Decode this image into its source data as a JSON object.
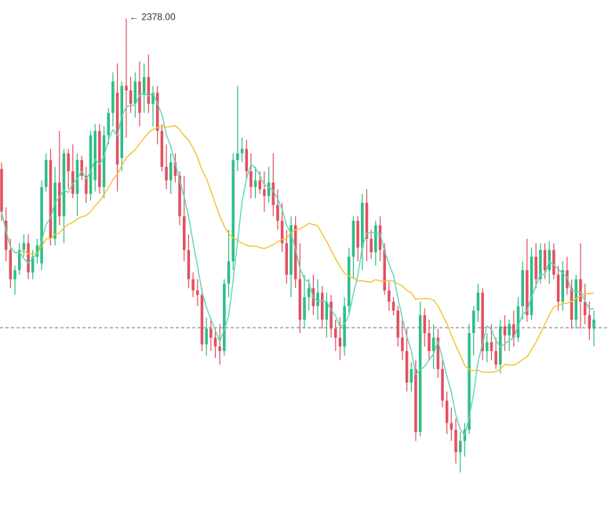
{
  "chart_data": {
    "type": "candlestick",
    "annotations": {
      "high_label": "← 2378.00"
    },
    "colors": {
      "up": "#2ebd85",
      "down": "#e2505f",
      "ma_fast": "#5fd6b8",
      "ma_slow": "#f2c230",
      "ref_line": "#777777"
    },
    "reference_line": 2240.4,
    "candles": [
      [
        2311,
        2314,
        2288,
        2292
      ],
      [
        2288,
        2294,
        2270,
        2275
      ],
      [
        2275,
        2280,
        2258,
        2262
      ],
      [
        2262,
        2268,
        2255,
        2266
      ],
      [
        2266,
        2278,
        2264,
        2275
      ],
      [
        2275,
        2282,
        2272,
        2278
      ],
      [
        2278,
        2282,
        2262,
        2265
      ],
      [
        2265,
        2275,
        2262,
        2272
      ],
      [
        2272,
        2280,
        2269,
        2277
      ],
      [
        2269,
        2306,
        2266,
        2303
      ],
      [
        2303,
        2318,
        2301,
        2315
      ],
      [
        2315,
        2320,
        2277,
        2280
      ],
      [
        2280,
        2312,
        2277,
        2305
      ],
      [
        2305,
        2328,
        2286,
        2290
      ],
      [
        2290,
        2320,
        2278,
        2318
      ],
      [
        2318,
        2320,
        2302,
        2310
      ],
      [
        2310,
        2322,
        2298,
        2300
      ],
      [
        2300,
        2318,
        2290,
        2315
      ],
      [
        2315,
        2317,
        2306,
        2308
      ],
      [
        2308,
        2312,
        2296,
        2300
      ],
      [
        2300,
        2328,
        2297,
        2326
      ],
      [
        2306,
        2331,
        2301,
        2328
      ],
      [
        2328,
        2331,
        2300,
        2303
      ],
      [
        2303,
        2330,
        2298,
        2326
      ],
      [
        2326,
        2338,
        2322,
        2336
      ],
      [
        2336,
        2354,
        2330,
        2350
      ],
      [
        2345,
        2358,
        2301,
        2313
      ],
      [
        2316,
        2350,
        2310,
        2348
      ],
      [
        2348,
        2378,
        2325,
        2346
      ],
      [
        2346,
        2352,
        2336,
        2340
      ],
      [
        2340,
        2354,
        2334,
        2350
      ],
      [
        2350,
        2359,
        2330,
        2336
      ],
      [
        2344,
        2358,
        2336,
        2352
      ],
      [
        2352,
        2362,
        2336,
        2340
      ],
      [
        2340,
        2348,
        2330,
        2345
      ],
      [
        2345,
        2348,
        2322,
        2328
      ],
      [
        2328,
        2331,
        2310,
        2312
      ],
      [
        2312,
        2322,
        2302,
        2306
      ],
      [
        2306,
        2318,
        2300,
        2314
      ],
      [
        2314,
        2318,
        2305,
        2308
      ],
      [
        2308,
        2310,
        2286,
        2290
      ],
      [
        2290,
        2308,
        2270,
        2275
      ],
      [
        2275,
        2282,
        2258,
        2262
      ],
      [
        2262,
        2265,
        2254,
        2257
      ],
      [
        2257,
        2262,
        2250,
        2255
      ],
      [
        2255,
        2258,
        2230,
        2233
      ],
      [
        2233,
        2245,
        2228,
        2240
      ],
      [
        2240,
        2244,
        2230,
        2236
      ],
      [
        2236,
        2240,
        2227,
        2232
      ],
      [
        2232,
        2242,
        2224,
        2230
      ],
      [
        2230,
        2262,
        2228,
        2260
      ],
      [
        2260,
        2284,
        2254,
        2270
      ],
      [
        2270,
        2318,
        2266,
        2315
      ],
      [
        2315,
        2348,
        2310,
        2318
      ],
      [
        2318,
        2325,
        2314,
        2320
      ],
      [
        2320,
        2324,
        2306,
        2310
      ],
      [
        2310,
        2318,
        2298,
        2303
      ],
      [
        2303,
        2312,
        2298,
        2306
      ],
      [
        2306,
        2310,
        2300,
        2302
      ],
      [
        2302,
        2310,
        2292,
        2299
      ],
      [
        2299,
        2312,
        2296,
        2305
      ],
      [
        2305,
        2318,
        2290,
        2295
      ],
      [
        2295,
        2302,
        2284,
        2288
      ],
      [
        2288,
        2296,
        2274,
        2278
      ],
      [
        2278,
        2284,
        2260,
        2264
      ],
      [
        2264,
        2290,
        2254,
        2286
      ],
      [
        2286,
        2290,
        2258,
        2262
      ],
      [
        2262,
        2278,
        2238,
        2244
      ],
      [
        2244,
        2264,
        2240,
        2254
      ],
      [
        2254,
        2262,
        2248,
        2258
      ],
      [
        2258,
        2264,
        2246,
        2250
      ],
      [
        2250,
        2262,
        2244,
        2256
      ],
      [
        2256,
        2259,
        2240,
        2244
      ],
      [
        2244,
        2256,
        2236,
        2252
      ],
      [
        2252,
        2255,
        2236,
        2240
      ],
      [
        2240,
        2244,
        2230,
        2236
      ],
      [
        2236,
        2245,
        2226,
        2232
      ],
      [
        2232,
        2254,
        2228,
        2250
      ],
      [
        2250,
        2276,
        2247,
        2272
      ],
      [
        2272,
        2290,
        2262,
        2288
      ],
      [
        2288,
        2290,
        2270,
        2276
      ],
      [
        2276,
        2300,
        2266,
        2296
      ],
      [
        2296,
        2302,
        2270,
        2280
      ],
      [
        2280,
        2284,
        2271,
        2274
      ],
      [
        2274,
        2288,
        2268,
        2286
      ],
      [
        2286,
        2290,
        2270,
        2275
      ],
      [
        2275,
        2278,
        2255,
        2257
      ],
      [
        2257,
        2261,
        2248,
        2252
      ],
      [
        2252,
        2254,
        2246,
        2248
      ],
      [
        2248,
        2250,
        2232,
        2236
      ],
      [
        2236,
        2244,
        2226,
        2230
      ],
      [
        2230,
        2240,
        2212,
        2216
      ],
      [
        2216,
        2225,
        2212,
        2222
      ],
      [
        2222,
        2226,
        2190,
        2194
      ],
      [
        2194,
        2252,
        2192,
        2246
      ],
      [
        2246,
        2249,
        2232,
        2238
      ],
      [
        2238,
        2244,
        2226,
        2230
      ],
      [
        2230,
        2242,
        2222,
        2236
      ],
      [
        2236,
        2240,
        2218,
        2222
      ],
      [
        2222,
        2226,
        2205,
        2208
      ],
      [
        2208,
        2212,
        2193,
        2198
      ],
      [
        2198,
        2205,
        2190,
        2195
      ],
      [
        2195,
        2200,
        2180,
        2185
      ],
      [
        2185,
        2194,
        2176,
        2190
      ],
      [
        2190,
        2198,
        2183,
        2195
      ],
      [
        2195,
        2242,
        2193,
        2238
      ],
      [
        2238,
        2250,
        2228,
        2248
      ],
      [
        2248,
        2260,
        2243,
        2256
      ],
      [
        2256,
        2258,
        2226,
        2230
      ],
      [
        2230,
        2238,
        2225,
        2234
      ],
      [
        2234,
        2242,
        2226,
        2230
      ],
      [
        2230,
        2236,
        2222,
        2224
      ],
      [
        2224,
        2244,
        2220,
        2241
      ],
      [
        2241,
        2246,
        2230,
        2237
      ],
      [
        2237,
        2244,
        2230,
        2242
      ],
      [
        2242,
        2248,
        2232,
        2236
      ],
      [
        2236,
        2254,
        2234,
        2250
      ],
      [
        2250,
        2270,
        2244,
        2266
      ],
      [
        2266,
        2280,
        2243,
        2246
      ],
      [
        2246,
        2276,
        2244,
        2272
      ],
      [
        2272,
        2278,
        2258,
        2262
      ],
      [
        2262,
        2278,
        2260,
        2275
      ],
      [
        2275,
        2278,
        2262,
        2266
      ],
      [
        2266,
        2279,
        2260,
        2275
      ],
      [
        2275,
        2278,
        2262,
        2264
      ],
      [
        2264,
        2268,
        2248,
        2252
      ],
      [
        2252,
        2270,
        2248,
        2266
      ],
      [
        2266,
        2272,
        2255,
        2258
      ],
      [
        2258,
        2262,
        2240,
        2244
      ],
      [
        2244,
        2264,
        2240,
        2262
      ],
      [
        2262,
        2278,
        2240,
        2252
      ],
      [
        2252,
        2260,
        2242,
        2246
      ],
      [
        2246,
        2252,
        2235,
        2240
      ],
      [
        2240,
        2248,
        2232,
        2244
      ]
    ],
    "ma_fast_period": 5,
    "ma_slow_period": 20,
    "ylim": [
      2165,
      2381
    ]
  }
}
